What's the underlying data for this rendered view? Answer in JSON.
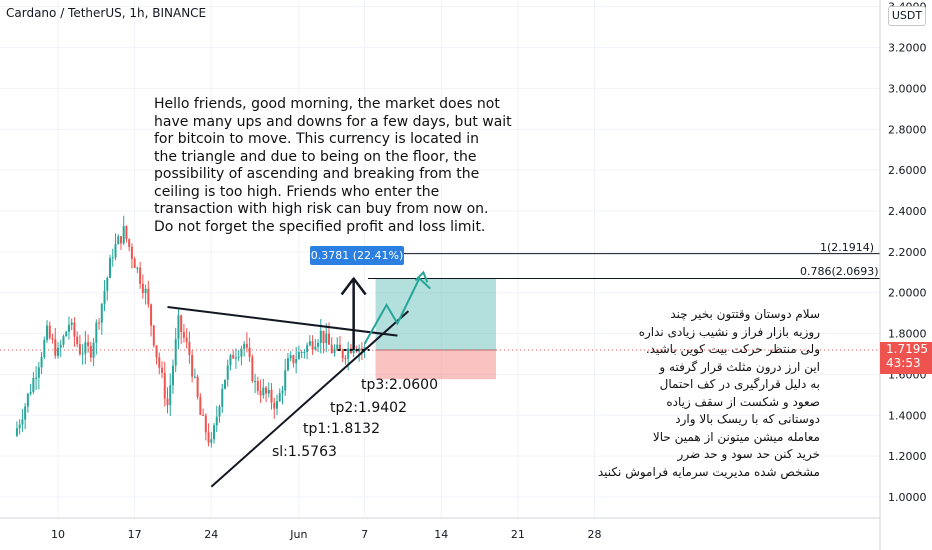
{
  "header": {
    "symbol": "Cardano / TetherUS, 1h, BINANCE",
    "currency_button": "USDT"
  },
  "price_tag": {
    "price": "1.7195",
    "countdown": "43:53",
    "color": "#ef5350"
  },
  "measure": {
    "label": "0.3781 (22.41%) 3781",
    "color": "#2a7fe0"
  },
  "fib_levels": [
    {
      "label": "1(2.1914)",
      "price": 2.1914
    },
    {
      "label": "0.786(2.0693)",
      "price": 2.0693
    }
  ],
  "annotations": {
    "english_note": "Hello friends, good morning, the market does not\nhave many ups and downs for a few days, but wait\n for bitcoin to move. This currency is located in\nthe triangle and due to being on the floor, the\npossibility of ascending and breaking from the\nceiling is too high. Friends who enter the\ntransaction with high risk can buy from now on.\nDo not forget the specified profit and loss limit.",
    "persian_note": "سلام دوستان وقتتون بخیر چند\nروزیه بازار فراز و نشیب زیادی نداره\nولی منتظر حرکت بیت کوین باشید.\nاین ارز درون مثلث قرار گرفته و\nبه دلیل قرارگیری در کف احتمال\nصعود و شکست از سقف زیاده\nدوستانی که با ریسک بالا وارد\nمعامله میشن میتونن از همین حالا\nخرید کنن حد سود و حد ضرر\nمشخص شده مدیریت سرمایه فراموش نکنید",
    "tp3": "tp3:2.0600",
    "tp2": "tp2:1.9402",
    "tp1": "tp1:1.8132",
    "sl": "sl:1.5763"
  },
  "chart_data": {
    "type": "candlestick",
    "title": "Cardano / TetherUS, 1h, BINANCE",
    "up_color": "#26a69a",
    "down_color": "#ef5350",
    "ylim": [
      0.94,
      3.45
    ],
    "y_ticks": [
      "1.0000",
      "1.2000",
      "1.4000",
      "1.6000",
      "1.8000",
      "2.0000",
      "2.2000",
      "2.4000",
      "2.6000",
      "2.8000",
      "3.0000",
      "3.2000",
      "3.4000"
    ],
    "x_ticks": [
      "10",
      "17",
      "24",
      "Jun",
      "7",
      "14",
      "21",
      "28"
    ],
    "price_path": [
      {
        "date": "May 6",
        "price": 1.3
      },
      {
        "date": "May 7",
        "price": 1.45
      },
      {
        "date": "May 8",
        "price": 1.62
      },
      {
        "date": "May 9",
        "price": 1.8
      },
      {
        "date": "May 10",
        "price": 1.7
      },
      {
        "date": "May 11",
        "price": 1.85
      },
      {
        "date": "May 12",
        "price": 1.72
      },
      {
        "date": "May 13",
        "price": 1.72
      },
      {
        "date": "May 14",
        "price": 1.95
      },
      {
        "date": "May 15",
        "price": 2.2
      },
      {
        "date": "May 16",
        "price": 2.3
      },
      {
        "date": "May 17",
        "price": 2.15
      },
      {
        "date": "May 18",
        "price": 2.0
      },
      {
        "date": "May 19",
        "price": 1.7
      },
      {
        "date": "May 20",
        "price": 1.45
      },
      {
        "date": "May 21",
        "price": 1.85
      },
      {
        "date": "May 22",
        "price": 1.7
      },
      {
        "date": "May 23",
        "price": 1.4
      },
      {
        "date": "May 24",
        "price": 1.25
      },
      {
        "date": "May 25",
        "price": 1.55
      },
      {
        "date": "May 26",
        "price": 1.7
      },
      {
        "date": "May 27",
        "price": 1.75
      },
      {
        "date": "May 28",
        "price": 1.55
      },
      {
        "date": "May 29",
        "price": 1.5
      },
      {
        "date": "May 30",
        "price": 1.45
      },
      {
        "date": "May 31",
        "price": 1.65
      },
      {
        "date": "Jun 1",
        "price": 1.7
      },
      {
        "date": "Jun 2",
        "price": 1.75
      },
      {
        "date": "Jun 3",
        "price": 1.8
      },
      {
        "date": "Jun 4",
        "price": 1.72
      },
      {
        "date": "Jun 5",
        "price": 1.7
      },
      {
        "date": "Jun 6",
        "price": 1.75
      },
      {
        "date": "Jun 7",
        "price": 1.72
      }
    ],
    "triangle": {
      "upper": [
        {
          "date": "May 20",
          "price": 1.93
        },
        {
          "date": "Jun 10",
          "price": 1.79
        }
      ],
      "lower": [
        {
          "date": "May 24",
          "price": 1.05
        },
        {
          "date": "Jun 11",
          "price": 1.91
        }
      ]
    },
    "position": {
      "entry": 1.7195,
      "target": 2.0693,
      "stop": 1.5763
    },
    "projection": [
      {
        "date": "Jun 7",
        "price": 1.75
      },
      {
        "date": "Jun 9",
        "price": 1.94
      },
      {
        "date": "Jun 10",
        "price": 1.85
      },
      {
        "date": "Jun 12",
        "price": 2.07
      },
      {
        "date": "Jun 13",
        "price": 2.02
      }
    ]
  }
}
